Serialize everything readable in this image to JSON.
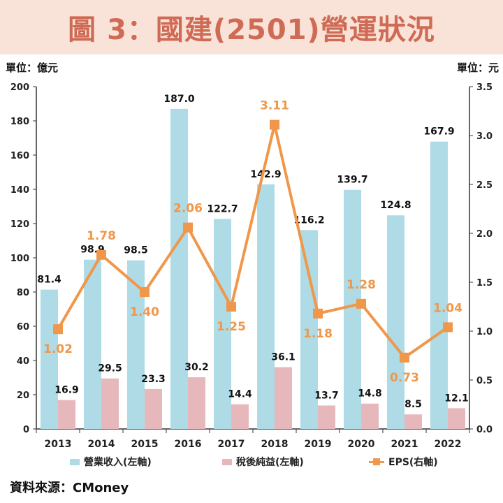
{
  "title": "圖 3：國建(2501)營運狀況",
  "left_unit": "單位：億元",
  "right_unit": "單位：元",
  "source": "資料來源：CMoney",
  "colors": {
    "revenue": "#aedbe6",
    "net_income": "#e7b8bb",
    "eps": "#f0974a",
    "title": "#cf6a55",
    "banner": "#f9e3d8"
  },
  "legend": {
    "revenue": "營業收入(左軸)",
    "net_income": "稅後純益(左軸)",
    "eps": "EPS(右軸)"
  },
  "chart_data": {
    "type": "bar",
    "categories": [
      "2013",
      "2014",
      "2015",
      "2016",
      "2017",
      "2018",
      "2019",
      "2020",
      "2021",
      "2022"
    ],
    "series": [
      {
        "name": "營業收入(左軸)",
        "axis": "left",
        "type": "bar",
        "values": [
          81.4,
          98.9,
          98.5,
          187.0,
          122.7,
          142.9,
          116.2,
          139.7,
          124.8,
          167.9
        ]
      },
      {
        "name": "稅後純益(左軸)",
        "axis": "left",
        "type": "bar",
        "values": [
          16.9,
          29.5,
          23.3,
          30.2,
          14.4,
          36.1,
          13.7,
          14.8,
          8.5,
          12.1
        ]
      },
      {
        "name": "EPS(右軸)",
        "axis": "right",
        "type": "line",
        "values": [
          1.02,
          1.78,
          1.4,
          2.06,
          1.25,
          3.11,
          1.18,
          1.28,
          0.73,
          1.04
        ]
      }
    ],
    "bar_labels": {
      "revenue": [
        "81.4",
        "98.9",
        "98.5",
        "187.0",
        "122.7",
        "142.9",
        "116.2",
        "139.7",
        "124.8",
        "167.9"
      ],
      "net_income": [
        "16.9",
        "29.5",
        "23.3",
        "30.2",
        "14.4",
        "36.1",
        "13.7",
        "14.8",
        "8.5",
        "12.1"
      ],
      "eps": [
        "1.02",
        "1.78",
        "1.40",
        "2.06",
        "1.25",
        "3.11",
        "1.18",
        "1.28",
        "0.73",
        "1.04"
      ]
    },
    "ylim_left": [
      0,
      200
    ],
    "ylim_right": [
      0,
      3.5
    ],
    "yticks_left": [
      "0",
      "20",
      "40",
      "60",
      "80",
      "100",
      "120",
      "140",
      "160",
      "180",
      "200"
    ],
    "yticks_right": [
      "0.0",
      "0.5",
      "1.0",
      "1.5",
      "2.0",
      "2.5",
      "3.0",
      "3.5"
    ],
    "grid": false,
    "legend_position": "bottom"
  }
}
